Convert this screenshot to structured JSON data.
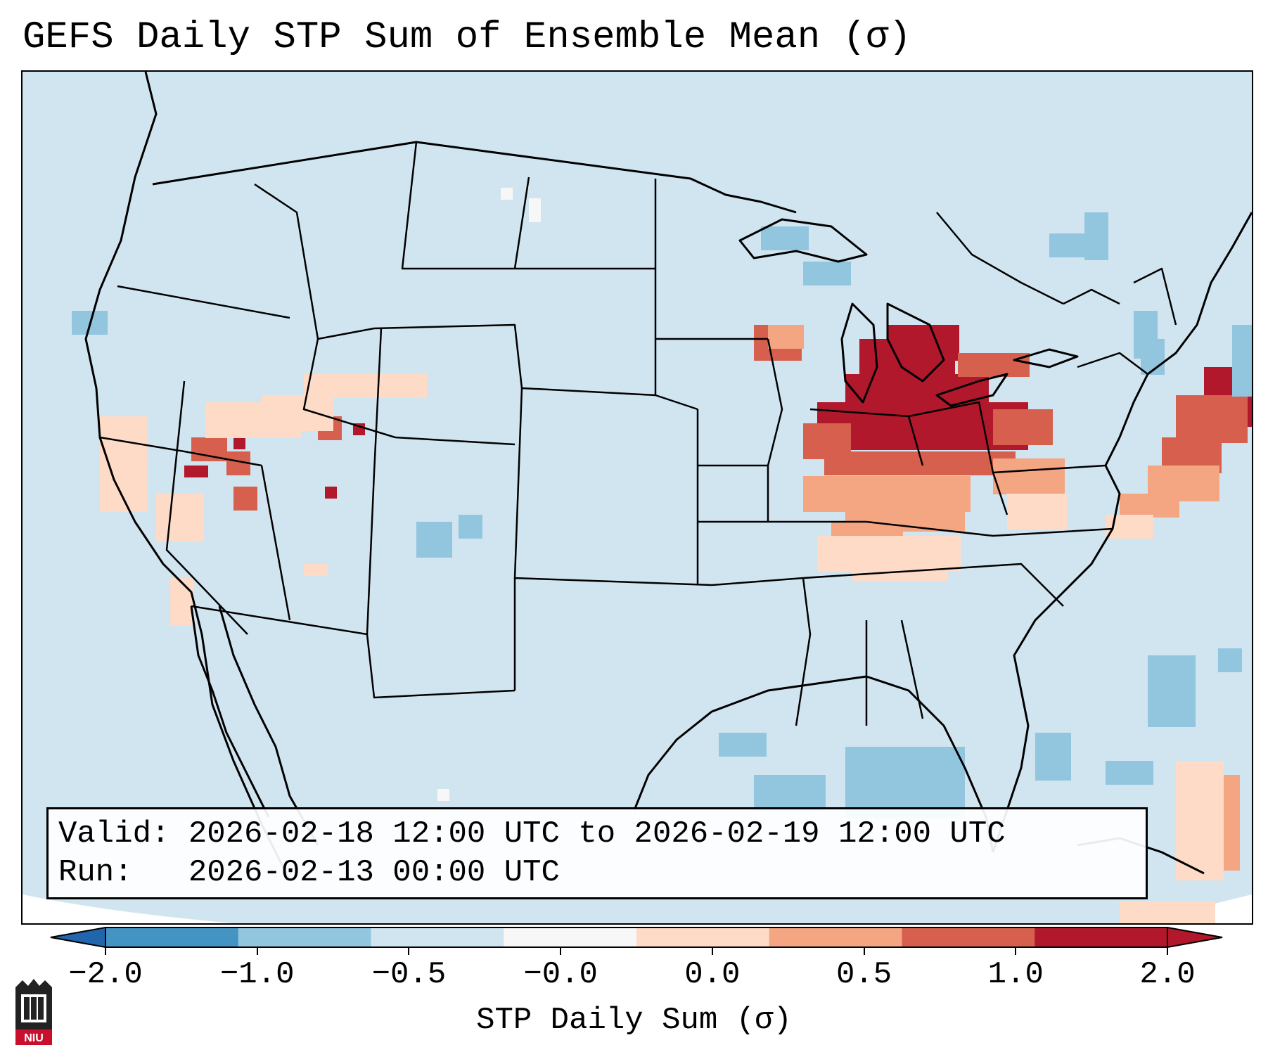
{
  "title": "GEFS Daily STP Sum of Ensemble Mean (σ)",
  "info": {
    "valid_label": "Valid:",
    "valid_value": "2026-02-18 12:00 UTC to 2026-02-19 12:00 UTC",
    "run_label": "Run:",
    "run_value": "2026-02-13 00:00 UTC"
  },
  "colorbar": {
    "label": "STP Daily Sum (σ)",
    "ticks": [
      "−2.0",
      "−1.0",
      "−0.5",
      "−0.0",
      "0.0",
      "0.5",
      "1.0",
      "2.0"
    ],
    "colors": [
      "#4393c3",
      "#92c5de",
      "#d1e5f0",
      "#f7f7f7",
      "#fddbc7",
      "#f4a582",
      "#d6604d",
      "#b2182b"
    ],
    "extend_low_color": "#2166ac",
    "extend_high_color": "#b2182b"
  },
  "map": {
    "background_color": "#d1e5f0",
    "outside_projection_color": "#ffffff",
    "region": "Contiguous United States, southern Canada, northern Mexico, Gulf of Mexico"
  },
  "logo": {
    "text": "NIU",
    "color": "#c8102e"
  }
}
